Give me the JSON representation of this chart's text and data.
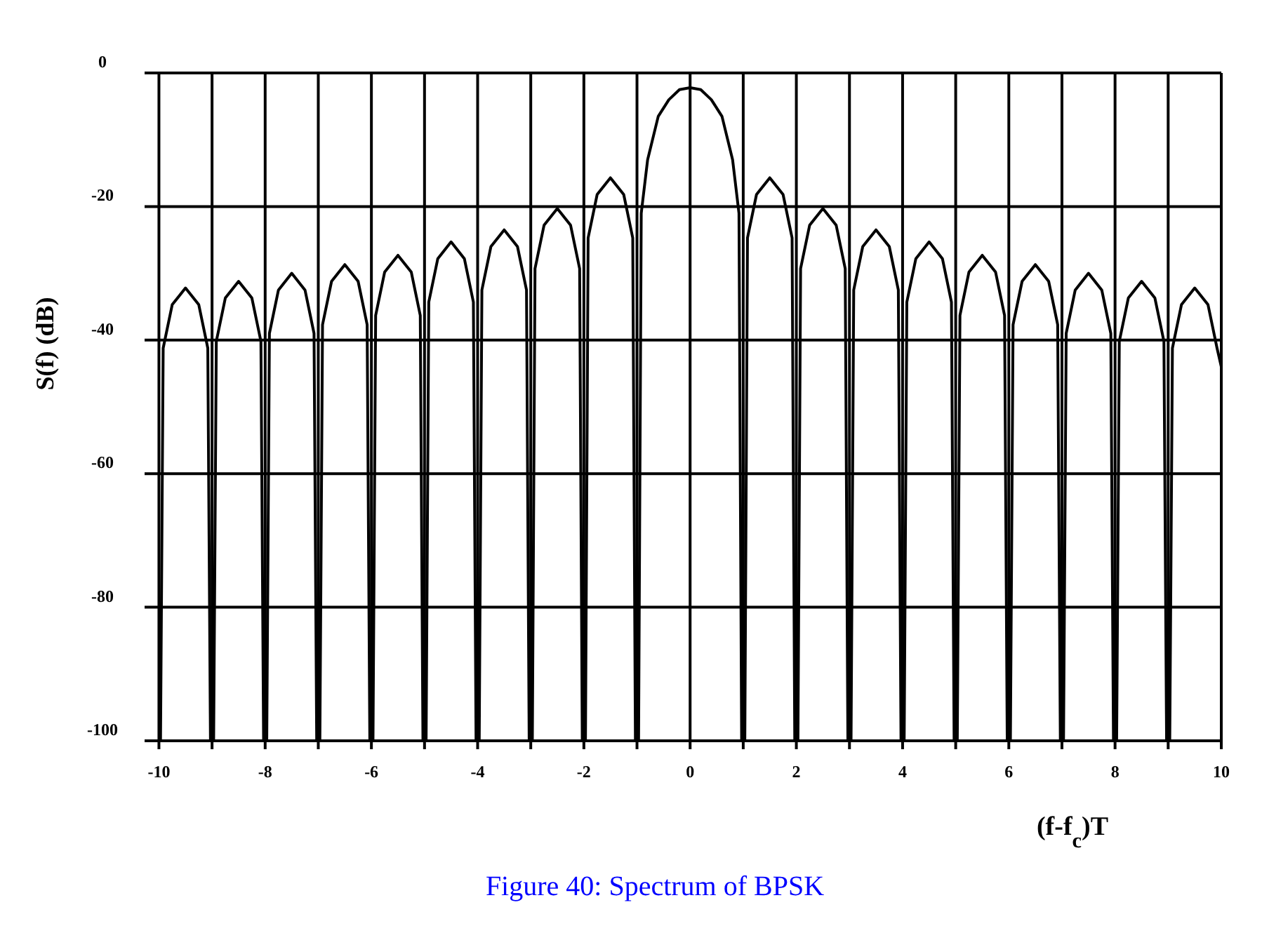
{
  "chart_data": {
    "type": "line",
    "xlabel": "(f-f$_{c}$)T",
    "ylabel": "S(f) (dB)",
    "annotations": [
      "Figure 40: Spectrum of BPSK"
    ],
    "xlim": [
      -10.27,
      10
    ],
    "ylim": [
      -100,
      0
    ],
    "xticks": [
      -10,
      {
        "value": -9,
        "label": null
      },
      -8,
      {
        "value": -7,
        "label": null
      },
      -6,
      {
        "value": -5,
        "label": null
      },
      -4,
      {
        "value": -3,
        "label": null
      },
      -2,
      {
        "value": -1,
        "label": null
      },
      0,
      {
        "value": 1,
        "label": null
      },
      2,
      {
        "value": 3,
        "label": null
      },
      4,
      {
        "value": 5,
        "label": null
      },
      6,
      {
        "value": 7,
        "label": null
      },
      8,
      {
        "value": 9,
        "label": null
      },
      10
    ],
    "yticks": [
      0,
      -20,
      -40,
      -60,
      -80,
      -100
    ],
    "grid": true,
    "marker": "none",
    "line_style": "solid",
    "series": [
      {
        "color": "#000000",
        "x": [
          -9.97,
          -9.92,
          -9.75,
          -9.5,
          -9.25,
          -9.08,
          -9.03,
          -8.97,
          -8.92,
          -8.75,
          -8.5,
          -8.25,
          -8.08,
          -8.03,
          -7.97,
          -7.92,
          -7.75,
          -7.5,
          -7.25,
          -7.08,
          -7.03,
          -6.97,
          -6.92,
          -6.75,
          -6.5,
          -6.25,
          -6.08,
          -6.03,
          -5.97,
          -5.92,
          -5.75,
          -5.5,
          -5.25,
          -5.08,
          -5.03,
          -4.97,
          -4.92,
          -4.75,
          -4.5,
          -4.25,
          -4.08,
          -4.03,
          -3.97,
          -3.92,
          -3.75,
          -3.5,
          -3.25,
          -3.08,
          -3.03,
          -2.97,
          -2.92,
          -2.75,
          -2.5,
          -2.25,
          -2.08,
          -2.03,
          -1.97,
          -1.92,
          -1.75,
          -1.5,
          -1.25,
          -1.08,
          -1.03,
          -0.97,
          -0.92,
          -0.8,
          -0.6,
          -0.4,
          -0.2,
          0,
          0.2,
          0.4,
          0.6,
          0.8,
          0.92,
          0.97,
          1.03,
          1.08,
          1.25,
          1.5,
          1.75,
          1.92,
          1.97,
          2.03,
          2.08,
          2.25,
          2.5,
          2.75,
          2.92,
          2.97,
          3.03,
          3.08,
          3.25,
          3.5,
          3.75,
          3.92,
          3.97,
          4.03,
          4.08,
          4.25,
          4.5,
          4.75,
          4.92,
          4.97,
          5.03,
          5.08,
          5.25,
          5.5,
          5.75,
          5.92,
          5.97,
          6.03,
          6.08,
          6.25,
          6.5,
          6.75,
          6.92,
          6.97,
          7.03,
          7.08,
          7.25,
          7.5,
          7.75,
          7.92,
          7.97,
          8.03,
          8.08,
          8.25,
          8.5,
          8.75,
          8.92,
          8.97,
          9.03,
          9.08,
          9.25,
          9.5,
          9.75,
          9.92,
          10
        ],
        "values": [
          -100,
          -41.2,
          -34.7,
          -32.2,
          -34.7,
          -41.2,
          -100,
          -100,
          -40.2,
          -33.7,
          -31.2,
          -33.7,
          -40.2,
          -100,
          -100,
          -39,
          -32.5,
          -30,
          -32.5,
          -39,
          -100,
          -100,
          -37.7,
          -31.2,
          -28.7,
          -31.2,
          -37.7,
          -100,
          -100,
          -36.3,
          -29.8,
          -27.3,
          -29.8,
          -36.3,
          -100,
          -100,
          -34.3,
          -27.8,
          -25.3,
          -27.8,
          -34.3,
          -100,
          -100,
          -32.5,
          -26,
          -23.5,
          -26,
          -32.5,
          -100,
          -100,
          -29.3,
          -22.8,
          -20.3,
          -22.8,
          -29.3,
          -100,
          -100,
          -24.7,
          -18.2,
          -15.7,
          -18.2,
          -24.7,
          -100,
          -100,
          -21,
          -13,
          -6.5,
          -4,
          -2.5,
          -2.2,
          -2.5,
          -4,
          -6.5,
          -13,
          -21,
          -100,
          -100,
          -24.7,
          -18.2,
          -15.7,
          -18.2,
          -24.7,
          -100,
          -100,
          -29.3,
          -22.8,
          -20.3,
          -22.8,
          -29.3,
          -100,
          -100,
          -32.5,
          -26,
          -23.5,
          -26,
          -32.5,
          -100,
          -100,
          -34.3,
          -27.8,
          -25.3,
          -27.8,
          -34.3,
          -100,
          -100,
          -36.3,
          -29.8,
          -27.3,
          -29.8,
          -36.3,
          -100,
          -100,
          -37.7,
          -31.2,
          -28.7,
          -31.2,
          -37.7,
          -100,
          -100,
          -39,
          -32.5,
          -30,
          -32.5,
          -39,
          -100,
          -100,
          -40.2,
          -33.7,
          -31.2,
          -33.7,
          -40.2,
          -100,
          -100,
          -41.2,
          -34.7,
          -32.2,
          -34.7,
          -41.2,
          -44
        ]
      }
    ]
  }
}
